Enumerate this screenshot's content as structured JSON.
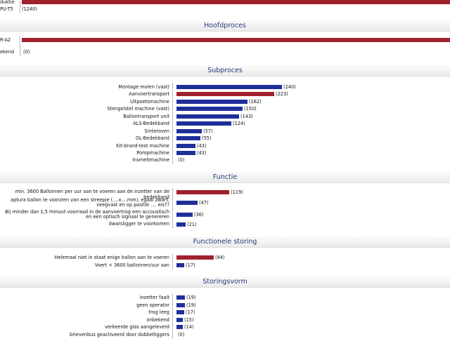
{
  "colors": {
    "blue": "#1f2f9a",
    "red": "#a0202c",
    "title": "#1f3a7a"
  },
  "top": {
    "labels": [
      "duktie",
      "PU-T5"
    ],
    "value": "(1240)"
  },
  "sections": [
    {
      "key": "hoofd",
      "title": "Hoofdproces"
    },
    {
      "key": "sub",
      "title": "Subproces"
    },
    {
      "key": "functie",
      "title": "Functie"
    },
    {
      "key": "func_storing",
      "title": "Functionele storing"
    },
    {
      "key": "storingsvorm",
      "title": "Storingsvorm"
    }
  ],
  "chart_data": [
    {
      "type": "bar",
      "title": "Hoofdproces",
      "categories": [
        "R-A2",
        "ekend"
      ],
      "values": [
        1240,
        0
      ],
      "highlight": [
        0
      ]
    },
    {
      "type": "bar",
      "title": "Subproces",
      "categories": [
        "Montage molen (vast)",
        "Aanvoertransport",
        "Uitpoetsmachine",
        "Stengelstel machine (vast)",
        "Ballontransport unit",
        "ALS-Bedekband",
        "Sinteroven",
        "GL-Bedekband",
        "Kit-brand-test machine",
        "Pompmachine",
        "Insmeltmachine"
      ],
      "values": [
        240,
        223,
        162,
        150,
        143,
        124,
        57,
        55,
        43,
        43,
        0
      ],
      "highlight": [
        1
      ]
    },
    {
      "type": "bar",
      "title": "Functie",
      "categories": [
        "min. 3600 Ballonnen per uur aan te voeren aan de inzetter van de bedekband",
        "aptura ballon te voorzien van een streepje (....x....mm), egaal zwart, veegvast en op positie .... eis??",
        "Bij minder dan 1,5 minuut voorraad in de aanvoertrog een accoustisch en een optisch signaal te genereren",
        "dwarsligger te voorkomen"
      ],
      "values": [
        119,
        47,
        36,
        21
      ],
      "highlight": [
        0
      ]
    },
    {
      "type": "bar",
      "title": "Functionele storing",
      "categories": [
        "Helemaal niet in staat enige ballon aan te voeren",
        "Voert < 3600 ballonnen/uur aan"
      ],
      "values": [
        84,
        17
      ],
      "highlight": [
        0
      ]
    },
    {
      "type": "bar",
      "title": "Storingsvorm",
      "categories": [
        "inzetter faalt",
        "geen operator",
        "trog leeg",
        "onbekend",
        "verkeerde glas aangeleverd",
        "brievenbus geactiveerd door dubbelliggers"
      ],
      "values": [
        19,
        19,
        17,
        15,
        14,
        0
      ],
      "highlight": []
    }
  ]
}
